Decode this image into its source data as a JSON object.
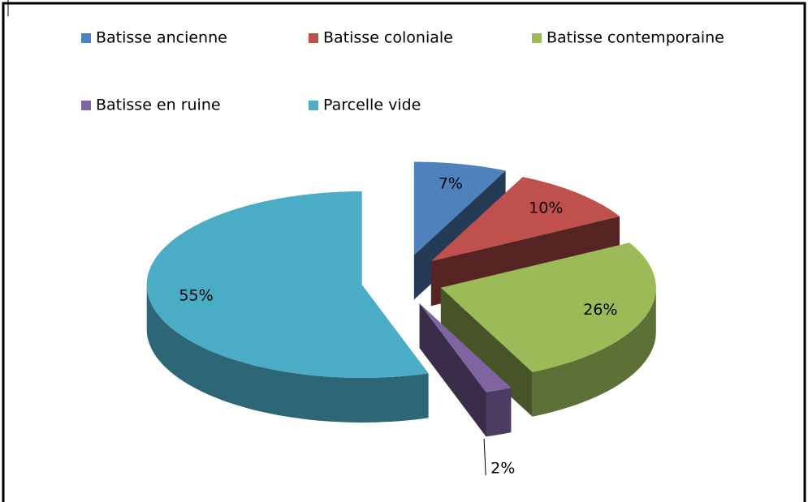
{
  "chart_data": {
    "type": "pie",
    "categories": [
      "Batisse ancienne",
      "Batisse coloniale",
      "Batisse contemporaine",
      "Batisse en ruine",
      "Parcelle vide"
    ],
    "values": [
      7,
      10,
      26,
      2,
      55
    ],
    "value_labels": [
      "7%",
      "10%",
      "26%",
      "2%",
      "55%"
    ],
    "colors": [
      "#4f81bd",
      "#c0504d",
      "#9bbb59",
      "#8064a2",
      "#4bacc6"
    ],
    "legend": "top"
  }
}
